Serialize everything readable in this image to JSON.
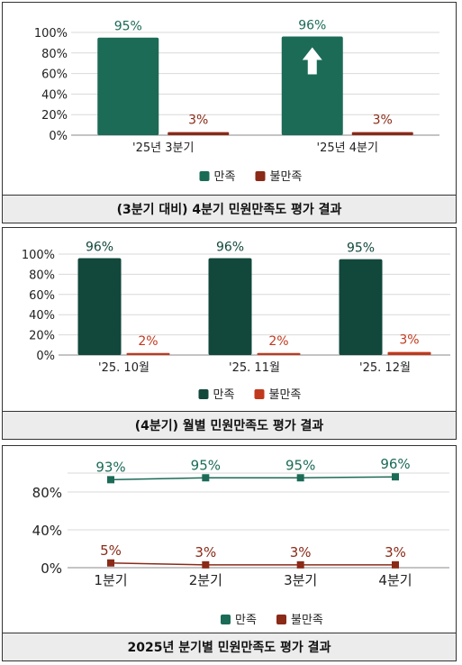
{
  "colors": {
    "satisfied": "#1b6b57",
    "satisfied_dark": "#12483b",
    "unsatisfied": "#8a2a17",
    "unsatisfied_light": "#c0391d"
  },
  "chart_data": [
    {
      "type": "bar",
      "caption": "(3분기 대비) 4분기 민원만족도 평가 결과",
      "categories": [
        "'25년 3분기",
        "'25년 4분기"
      ],
      "series": [
        {
          "name": "만족",
          "values": [
            95,
            96
          ],
          "labels": [
            "95%",
            "96%"
          ]
        },
        {
          "name": "불만족",
          "values": [
            3,
            3
          ],
          "labels": [
            "3%",
            "3%"
          ]
        }
      ],
      "yticks": [
        "100%",
        "80%",
        "60%",
        "40%",
        "20%",
        "0%"
      ],
      "ylim": [
        0,
        100
      ],
      "legend": "bottom",
      "annotation": "up-arrow-icon"
    },
    {
      "type": "bar",
      "caption": "(4분기) 월별 민원만족도 평가 결과",
      "categories": [
        "'25. 10월",
        "'25. 11월",
        "'25. 12월"
      ],
      "series": [
        {
          "name": "만족",
          "values": [
            96,
            96,
            95
          ],
          "labels": [
            "96%",
            "96%",
            "95%"
          ]
        },
        {
          "name": "불만족",
          "values": [
            2,
            2,
            3
          ],
          "labels": [
            "2%",
            "2%",
            "3%"
          ]
        }
      ],
      "yticks": [
        "100%",
        "80%",
        "60%",
        "40%",
        "20%",
        "0%"
      ],
      "ylim": [
        0,
        100
      ],
      "legend": "bottom"
    },
    {
      "type": "line",
      "caption": "2025년 분기별 민원만족도 평가 결과",
      "categories": [
        "1분기",
        "2분기",
        "3분기",
        "4분기"
      ],
      "series": [
        {
          "name": "만족",
          "values": [
            93,
            95,
            95,
            96
          ],
          "labels": [
            "93%",
            "95%",
            "95%",
            "96%"
          ]
        },
        {
          "name": "불만족",
          "values": [
            5,
            3,
            3,
            3
          ],
          "labels": [
            "5%",
            "3%",
            "3%",
            "3%"
          ]
        }
      ],
      "yticks": [
        "80%",
        "40%",
        "0%"
      ],
      "ylim": [
        0,
        100
      ],
      "legend": "bottom"
    }
  ]
}
